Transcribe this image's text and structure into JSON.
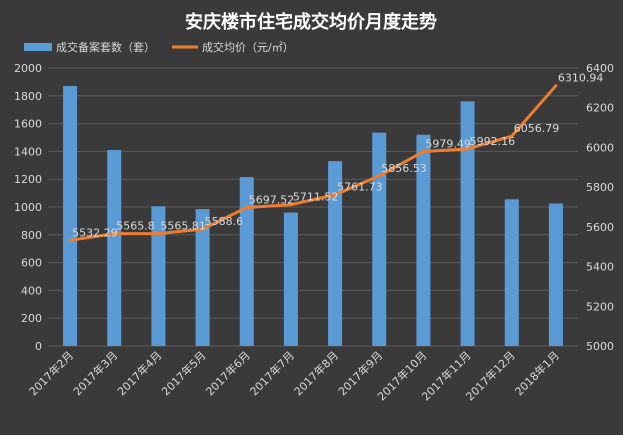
{
  "colors": {
    "background": "#3a3a3a",
    "grid": "#5a5a5a",
    "text": "#d9d9d9",
    "title": "#ffffff",
    "bar": "#5b9bd5",
    "line": "#ed7d31"
  },
  "chart_data": {
    "type": "bar",
    "title": "安庆楼市住宅成交均价月度走势",
    "categories": [
      "2017年2月",
      "2017年3月",
      "2017年4月",
      "2017年5月",
      "2017年6月",
      "2017年7月",
      "2017年8月",
      "2017年9月",
      "2017年10月",
      "2017年11月",
      "2017年12月",
      "2018年1月"
    ],
    "series": [
      {
        "name": "成交备案套数（套）",
        "type": "bar",
        "axis": "left",
        "values": [
          1870,
          1410,
          1005,
          985,
          1215,
          960,
          1330,
          1535,
          1520,
          1760,
          1055,
          1025
        ]
      },
      {
        "name": "成交均价（元/㎡）",
        "type": "line",
        "axis": "right",
        "values": [
          5532.29,
          5565.8,
          5565.81,
          5588.6,
          5697.52,
          5711.52,
          5761.73,
          5856.53,
          5979.49,
          5992.16,
          6056.79,
          6310.94
        ],
        "labels": [
          "5532.29",
          "5565.8",
          "5565.81",
          "5588.6",
          "5697.52",
          "5711.52",
          "5761.73",
          "5856.53",
          "5979.49",
          "5992.16",
          "6056.79",
          "6310.94"
        ]
      }
    ],
    "ylim_left": [
      0,
      2000
    ],
    "yticks_left": [
      "0",
      "200",
      "400",
      "600",
      "800",
      "1000",
      "1200",
      "1400",
      "1600",
      "1800",
      "2000"
    ],
    "ylim_right": [
      5000,
      6400
    ],
    "yticks_right": [
      "5000",
      "5200",
      "5400",
      "5600",
      "5800",
      "6000",
      "6200",
      "6400"
    ],
    "grid": true,
    "legend_placement": "top-left"
  }
}
